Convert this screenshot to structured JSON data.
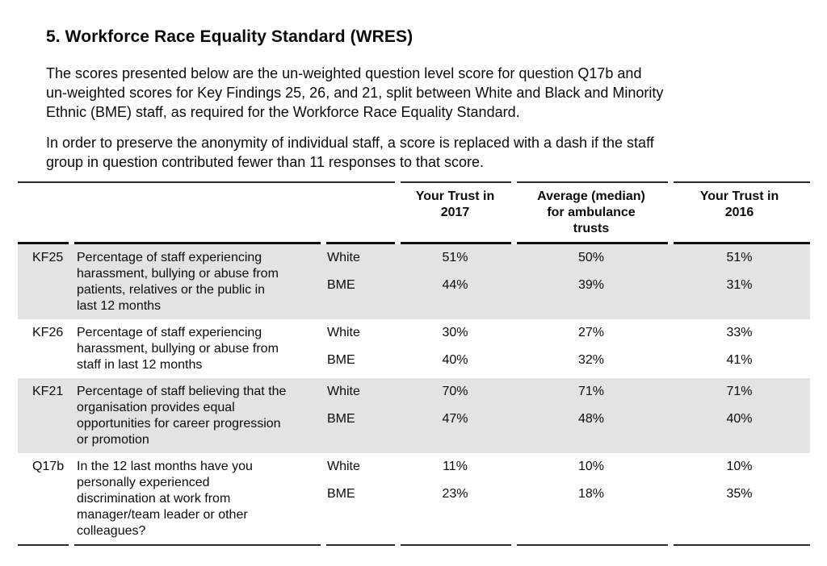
{
  "document": {
    "heading": "5. Workforce Race Equality Standard (WRES)",
    "paragraph1_lines": [
      "The scores presented below are the un-weighted question level score for question Q17b and",
      "un-weighted scores for Key Findings 25, 26, and 21, split between White and Black and Minority",
      "Ethnic (BME) staff, as required for the Workforce Race Equality Standard."
    ],
    "paragraph2_lines": [
      "In order to preserve the anonymity of individual staff, a score is replaced with a dash if the staff",
      "group in question contributed fewer than 11 responses to that score."
    ]
  },
  "table": {
    "stripe_color": "#e3e3e3",
    "columns": {
      "trust2017": [
        "Your Trust in",
        "2017"
      ],
      "average": [
        "Average (median)",
        "for ambulance",
        "trusts"
      ],
      "trust2016": [
        "Your Trust in",
        "2016"
      ]
    },
    "rows": [
      {
        "id": "KF25",
        "desc_lines": [
          "Percentage of staff experiencing",
          "harassment, bullying or abuse from",
          "patients, relatives or the public in",
          "last 12 months"
        ],
        "groups": [
          {
            "label": "White",
            "values": [
              "51%",
              "50%",
              "51%"
            ]
          },
          {
            "label": "BME",
            "values": [
              "44%",
              "39%",
              "31%"
            ]
          }
        ]
      },
      {
        "id": "KF26",
        "desc_lines": [
          "Percentage of staff experiencing",
          "harassment, bullying or abuse from",
          "staff in last 12 months"
        ],
        "groups": [
          {
            "label": "White",
            "values": [
              "30%",
              "27%",
              "33%"
            ]
          },
          {
            "label": "BME",
            "values": [
              "40%",
              "32%",
              "41%"
            ]
          }
        ]
      },
      {
        "id": "KF21",
        "desc_lines": [
          "Percentage of staff believing that the",
          "organisation provides equal",
          "opportunities for career progression",
          "or promotion"
        ],
        "groups": [
          {
            "label": "White",
            "values": [
              "70%",
              "71%",
              "71%"
            ]
          },
          {
            "label": "BME",
            "values": [
              "47%",
              "48%",
              "40%"
            ]
          }
        ]
      },
      {
        "id": "Q17b",
        "desc_lines": [
          "In the 12 last months have you",
          "personally experienced",
          "discrimination at work from",
          "manager/team leader or other",
          "colleagues?"
        ],
        "groups": [
          {
            "label": "White",
            "values": [
              "11%",
              "10%",
              "10%"
            ]
          },
          {
            "label": "BME",
            "values": [
              "23%",
              "18%",
              "35%"
            ]
          }
        ]
      }
    ]
  }
}
